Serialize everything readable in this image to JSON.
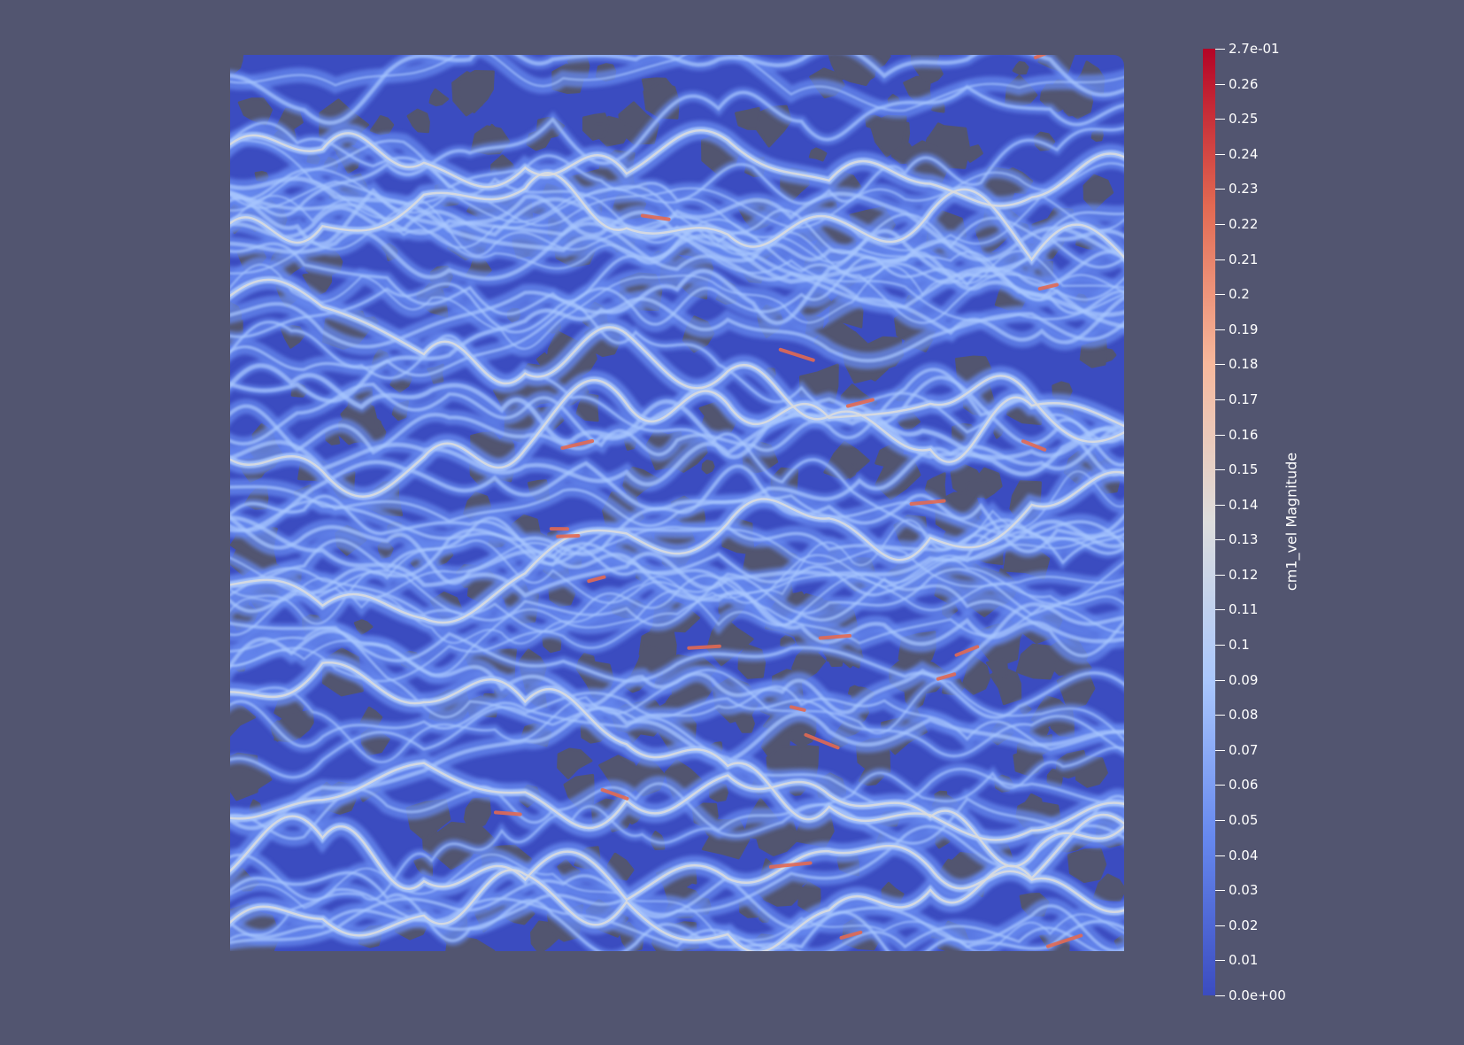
{
  "colorbar": {
    "title": "cm1_vel Magnitude",
    "max_label": "2.7e-01",
    "min_label": "0.0e+00",
    "range": [
      0.0,
      0.27
    ],
    "ticks": [
      "0.26",
      "0.25",
      "0.24",
      "0.23",
      "0.22",
      "0.21",
      "0.2",
      "0.19",
      "0.18",
      "0.17",
      "0.16",
      "0.15",
      "0.14",
      "0.13",
      "0.12",
      "0.11",
      "0.1",
      "0.09",
      "0.08",
      "0.07",
      "0.06",
      "0.05",
      "0.04",
      "0.03",
      "0.02",
      "0.01"
    ],
    "tick_values": [
      0.26,
      0.25,
      0.24,
      0.23,
      0.22,
      0.21,
      0.2,
      0.19,
      0.18,
      0.17,
      0.16,
      0.15,
      0.14,
      0.13,
      0.12,
      0.11,
      0.1,
      0.09,
      0.08,
      0.07,
      0.06,
      0.05,
      0.04,
      0.03,
      0.02,
      0.01
    ],
    "colormap": [
      "#3b4cc0",
      "#6688ee",
      "#aac7fd",
      "#dddddd",
      "#f7b89c",
      "#e26952",
      "#b40426"
    ]
  },
  "scene": {
    "background": "#525570",
    "base_color": "#3b4cc0",
    "pore_color": "#525570"
  }
}
